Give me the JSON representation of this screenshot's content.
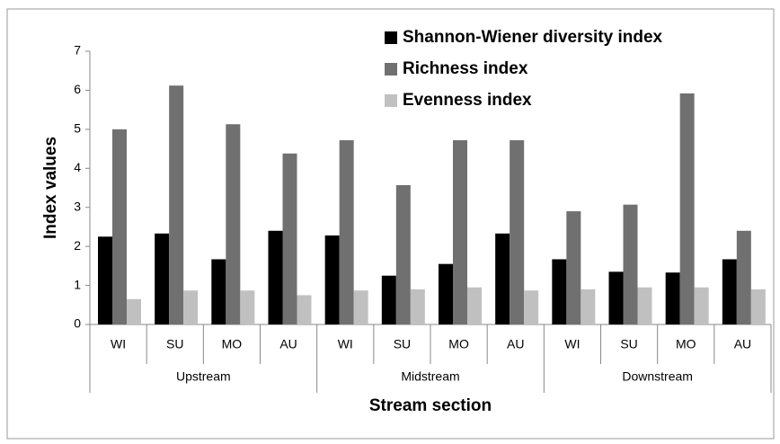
{
  "chart_data": {
    "type": "bar",
    "y_label": "Index values",
    "x_label": "Stream section",
    "categories": [
      "WI",
      "SU",
      "MO",
      "AU",
      "WI",
      "SU",
      "MO",
      "AU",
      "WI",
      "SU",
      "MO",
      "AU"
    ],
    "groups": [
      "Upstream",
      "Midstream",
      "Downstream"
    ],
    "series": [
      {
        "name": "Shannon-Wiener diversity index",
        "color": "#000000",
        "values": [
          2.25,
          2.33,
          1.67,
          2.4,
          2.28,
          1.25,
          1.55,
          2.33,
          1.67,
          1.35,
          1.33,
          1.67
        ]
      },
      {
        "name": "Richness index",
        "color": "#707070",
        "values": [
          5.0,
          6.12,
          5.13,
          4.38,
          4.72,
          3.57,
          4.72,
          4.72,
          2.9,
          3.07,
          5.92,
          2.4
        ]
      },
      {
        "name": "Evenness index",
        "color": "#c0c0c0",
        "values": [
          0.65,
          0.87,
          0.87,
          0.75,
          0.87,
          0.9,
          0.95,
          0.87,
          0.9,
          0.95,
          0.95,
          0.9
        ]
      }
    ],
    "ylim": [
      0,
      7
    ],
    "yticks": [
      0,
      1,
      2,
      3,
      4,
      5,
      6,
      7
    ],
    "legend": "top-right"
  }
}
